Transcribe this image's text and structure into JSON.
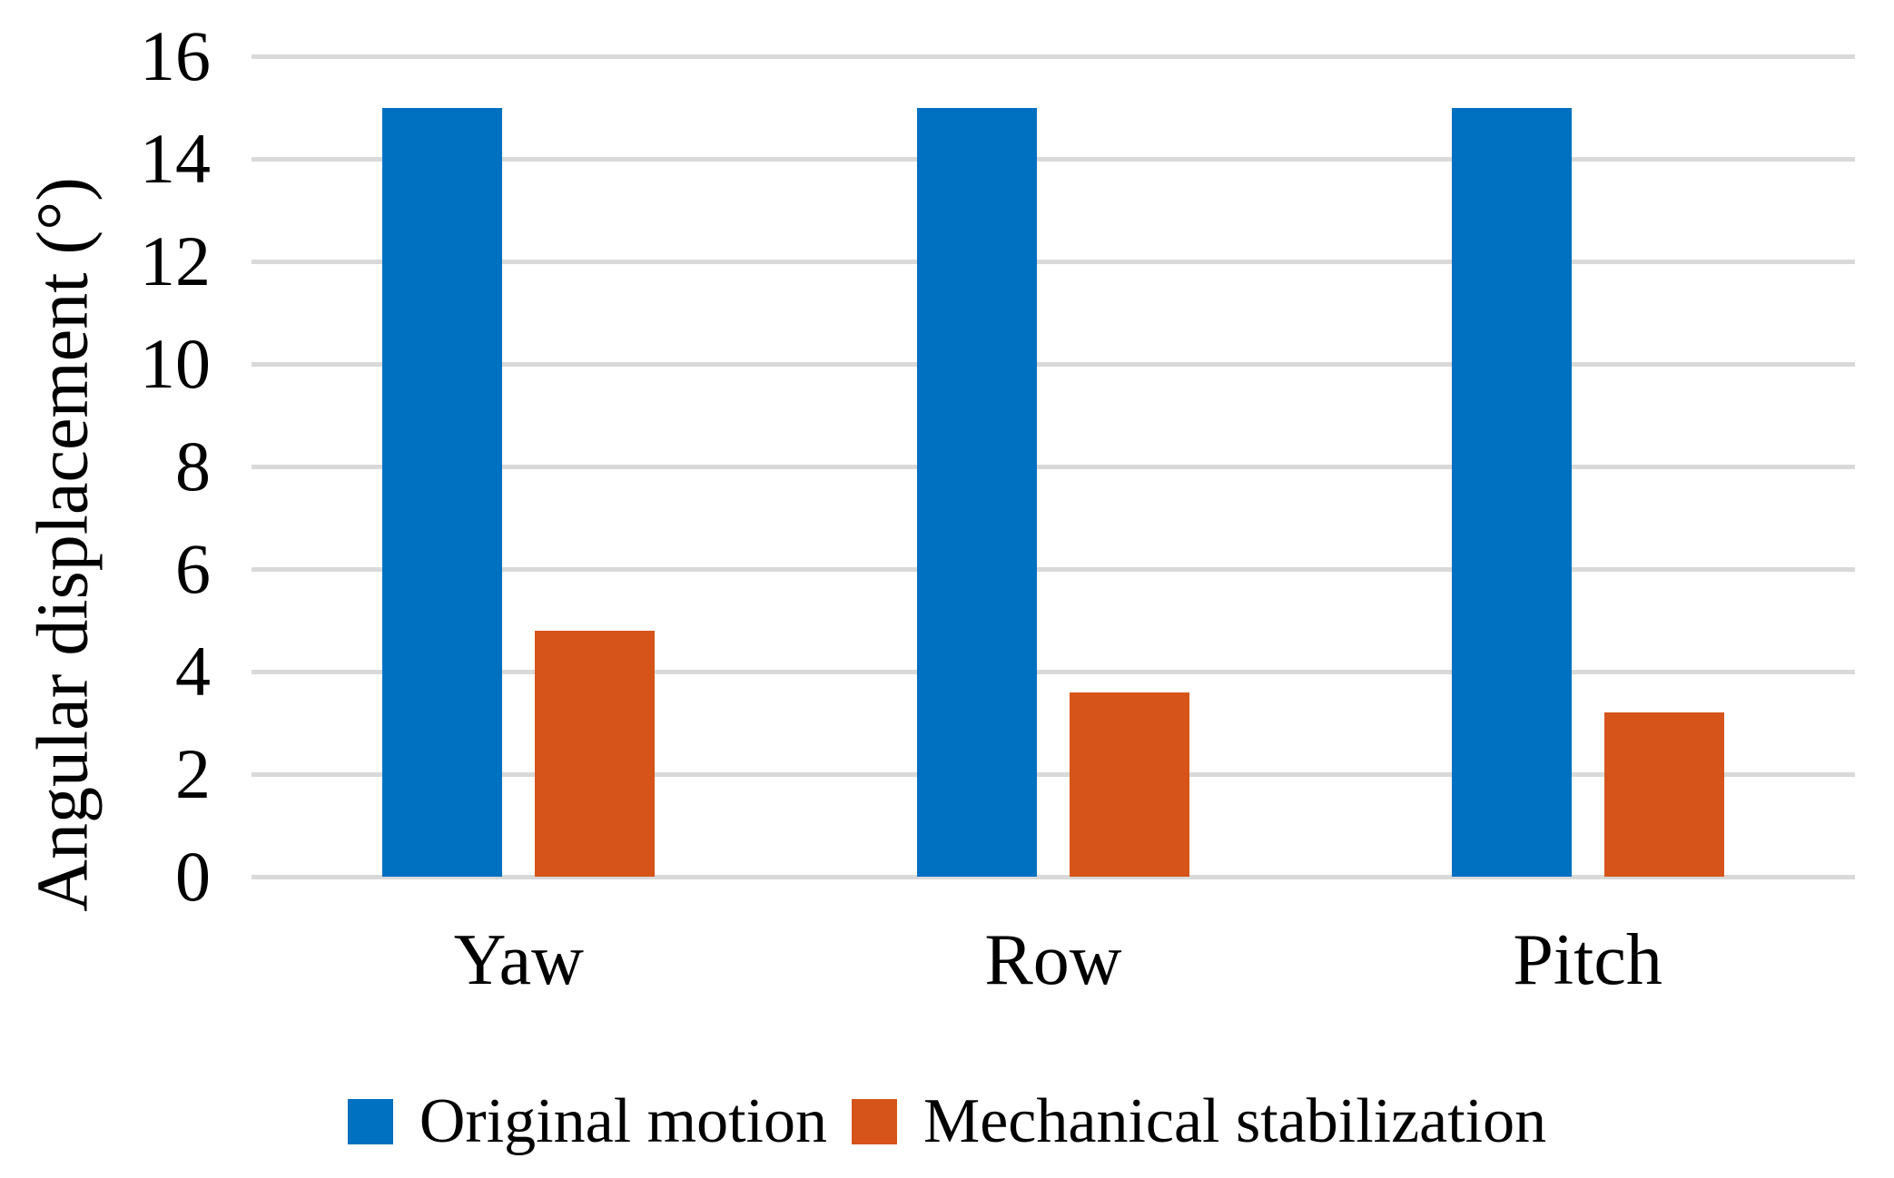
{
  "chart_data": {
    "type": "bar",
    "title": "",
    "categories": [
      "Yaw",
      "Row",
      "Pitch"
    ],
    "series": [
      {
        "name": "Original motion",
        "color": "#0070C0",
        "values": [
          15,
          15,
          15
        ]
      },
      {
        "name": "Mechanical stabilization",
        "color": "#D6541A",
        "values": [
          4.8,
          3.6,
          3.2
        ]
      }
    ],
    "xlabel": "",
    "ylabel": "Angular displacement (°)",
    "ylim": [
      0,
      16
    ],
    "yticks": [
      0,
      2,
      4,
      6,
      8,
      10,
      12,
      14,
      16
    ],
    "grid": true,
    "gridline_color": "#D9D9D9",
    "background_color": "#FFFFFF",
    "text_color": "#000000",
    "legend_position": "bottom"
  }
}
